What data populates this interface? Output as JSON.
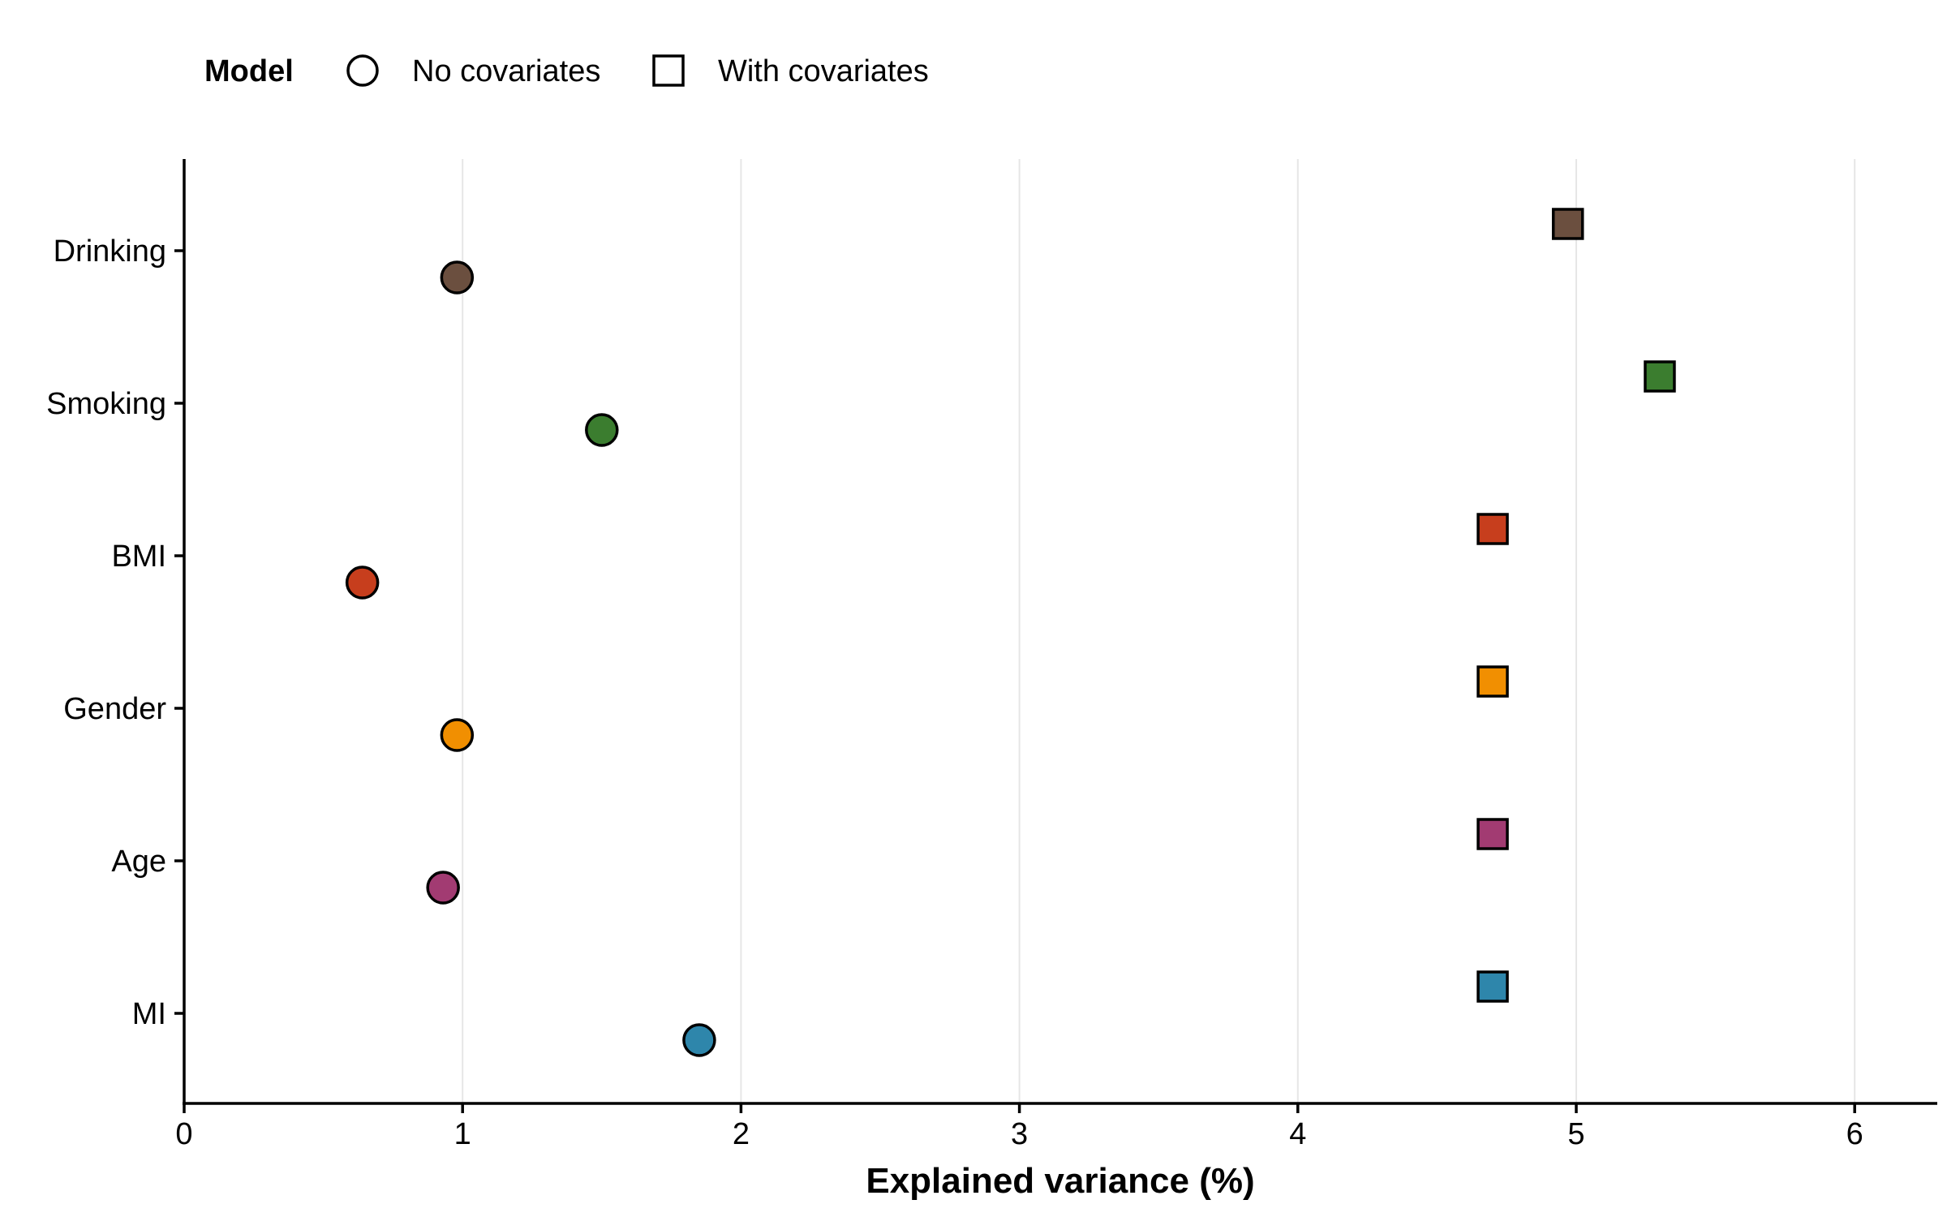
{
  "chart_data": {
    "type": "scatter",
    "title": "",
    "xlabel": "Explained variance (%)",
    "ylabel": "",
    "xlim": [
      0,
      6.3
    ],
    "xticks": [
      "0",
      "1",
      "2",
      "3",
      "4",
      "5",
      "6"
    ],
    "categories": [
      "MI",
      "Age",
      "Gender",
      "BMI",
      "Smoking",
      "Drinking"
    ],
    "category_colors": [
      "#2E86AB",
      "#A23B72",
      "#F18F01",
      "#C73E1D",
      "#3B7D2F",
      "#6B4F3F"
    ],
    "grid": "vertical major lines",
    "legend": {
      "title": "Model",
      "placement": "top-left",
      "items": [
        {
          "label": "No covariates",
          "shape": "circle"
        },
        {
          "label": "With covariates",
          "shape": "square"
        }
      ]
    },
    "series": [
      {
        "name": "No covariates",
        "shape": "circle",
        "values": [
          1.85,
          0.93,
          0.98,
          0.64,
          1.5,
          0.98
        ]
      },
      {
        "name": "With covariates",
        "shape": "square",
        "values": [
          4.7,
          4.7,
          4.7,
          4.7,
          5.3,
          4.97
        ]
      }
    ]
  }
}
